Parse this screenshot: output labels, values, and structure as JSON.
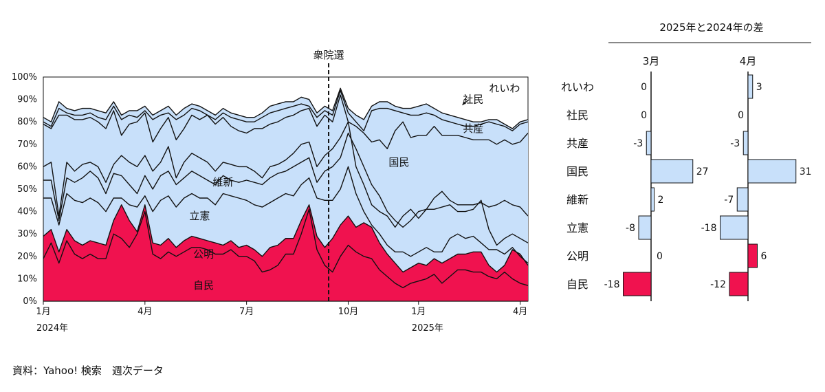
{
  "chart_data": [
    {
      "type": "area",
      "stacked": true,
      "ylim": [
        0,
        100
      ],
      "yticks": [
        "0%",
        "10%",
        "20%",
        "30%",
        "40%",
        "50%",
        "60%",
        "70%",
        "80%",
        "90%",
        "100%"
      ],
      "grid": false,
      "x_axis": {
        "unit": "week",
        "start": "2024-01-01",
        "weeks": 62,
        "ticks": [
          {
            "label": "1月",
            "week": 0
          },
          {
            "label": "4月",
            "week": 13
          },
          {
            "label": "7月",
            "week": 26
          },
          {
            "label": "10月",
            "week": 39
          },
          {
            "label": "1月",
            "week": 48
          },
          {
            "label": "4月",
            "week": 61
          }
        ],
        "year_labels": [
          {
            "label": "2024年",
            "week": 0
          },
          {
            "label": "2025年",
            "week": 48
          }
        ]
      },
      "event": {
        "label": "衆院選",
        "week": 36.5
      },
      "series_order_bottom_to_top": [
        "自民",
        "公明",
        "立憲",
        "維新",
        "国民",
        "共産",
        "社民",
        "れいわ"
      ],
      "cumulative_boundaries": {
        "自民": [
          19,
          26,
          17,
          27,
          21,
          19,
          21,
          19,
          19,
          30,
          28,
          24,
          30,
          40,
          21,
          19,
          22,
          20,
          22,
          24,
          24,
          23,
          21,
          21,
          23,
          20,
          20,
          18,
          13,
          14,
          16,
          21,
          21,
          30,
          41,
          23,
          16,
          13,
          20,
          25,
          22,
          20,
          19,
          14,
          11,
          8,
          6,
          8,
          9,
          10,
          12,
          8,
          11,
          14,
          14,
          13,
          13,
          11,
          10,
          13,
          10,
          8,
          7
        ],
        "公明": [
          29,
          32,
          22,
          32,
          27,
          25,
          27,
          26,
          25,
          36,
          43,
          36,
          31,
          43,
          26,
          25,
          28,
          24,
          27,
          29,
          28,
          27,
          26,
          25,
          27,
          24,
          25,
          23,
          20,
          24,
          25,
          28,
          28,
          36,
          43,
          29,
          24,
          28,
          34,
          38,
          33,
          35,
          33,
          26,
          21,
          17,
          13,
          15,
          17,
          16,
          19,
          17,
          19,
          21,
          21,
          22,
          22,
          16,
          13,
          16,
          23,
          21,
          16
        ],
        "立憲": [
          46,
          46,
          34,
          48,
          45,
          44,
          46,
          44,
          40,
          46,
          46,
          43,
          42,
          47,
          40,
          45,
          47,
          42,
          46,
          48,
          46,
          46,
          43,
          48,
          47,
          46,
          45,
          43,
          42,
          44,
          46,
          48,
          47,
          52,
          55,
          46,
          45,
          45,
          50,
          60,
          48,
          40,
          34,
          30,
          25,
          22,
          22,
          20,
          22,
          24,
          22,
          22,
          28,
          30,
          28,
          29,
          26,
          23,
          23,
          21,
          24,
          20,
          17
        ],
        "維新": [
          54,
          54,
          36,
          55,
          53,
          55,
          58,
          55,
          48,
          57,
          56,
          52,
          48,
          56,
          50,
          56,
          58,
          52,
          55,
          58,
          56,
          54,
          52,
          56,
          54,
          53,
          54,
          53,
          52,
          55,
          57,
          58,
          60,
          62,
          64,
          53,
          58,
          60,
          64,
          75,
          68,
          60,
          52,
          47,
          40,
          36,
          33,
          36,
          40,
          41,
          41,
          42,
          43,
          40,
          40,
          41,
          45,
          32,
          25,
          28,
          30,
          28,
          26
        ],
        "国民": [
          60,
          62,
          38,
          62,
          58,
          61,
          62,
          60,
          53,
          61,
          65,
          62,
          60,
          65,
          58,
          62,
          69,
          55,
          62,
          66,
          64,
          62,
          58,
          62,
          61,
          60,
          60,
          58,
          55,
          60,
          61,
          63,
          66,
          70,
          71,
          60,
          65,
          68,
          73,
          80,
          60,
          52,
          43,
          40,
          38,
          33,
          38,
          41,
          37,
          41,
          46,
          49,
          45,
          43,
          43,
          43,
          44,
          42,
          43,
          45,
          43,
          42,
          38
        ],
        "共産": [
          79,
          77,
          83,
          83,
          81,
          81,
          82,
          80,
          77,
          85,
          74,
          79,
          80,
          84,
          71,
          77,
          82,
          72,
          77,
          83,
          81,
          83,
          79,
          82,
          78,
          76,
          75,
          77,
          77,
          79,
          80,
          82,
          83,
          85,
          86,
          78,
          83,
          80,
          92,
          80,
          78,
          75,
          71,
          72,
          68,
          76,
          80,
          73,
          74,
          74,
          78,
          74,
          74,
          74,
          73,
          72,
          72,
          72,
          70,
          72,
          70,
          71,
          75
        ],
        "社民": [
          80,
          78,
          86,
          84,
          83,
          83,
          84,
          82,
          81,
          87,
          81,
          83,
          82,
          85,
          81,
          83,
          84,
          81,
          83,
          86,
          85,
          83,
          81,
          84,
          82,
          81,
          80,
          80,
          82,
          84,
          85,
          86,
          87,
          88,
          87,
          82,
          85,
          83,
          94,
          84,
          80,
          76,
          85,
          86,
          86,
          85,
          84,
          83,
          83,
          84,
          83,
          81,
          80,
          79,
          78,
          78,
          79,
          80,
          79,
          78,
          76,
          79,
          80
        ],
        "れいわ": [
          82,
          80,
          89,
          86,
          85,
          86,
          86,
          85,
          84,
          89,
          83,
          85,
          85,
          87,
          83,
          85,
          87,
          83,
          86,
          88,
          87,
          85,
          83,
          86,
          84,
          83,
          82,
          82,
          84,
          87,
          88,
          89,
          89,
          91,
          90,
          84,
          87,
          85,
          95,
          86,
          83,
          81,
          87,
          89,
          89,
          87,
          86,
          86,
          87,
          88,
          86,
          84,
          83,
          82,
          81,
          80,
          80,
          81,
          81,
          79,
          77,
          80,
          81
        ]
      },
      "area_labels": [
        {
          "text": "れいわ",
          "week": 59,
          "y": 95
        },
        {
          "text": "社民",
          "week": 55,
          "y": 90
        },
        {
          "text": "共産",
          "week": 55,
          "y": 77
        },
        {
          "text": "国民",
          "week": 45.5,
          "y": 62
        },
        {
          "text": "維新",
          "week": 23,
          "y": 53
        },
        {
          "text": "立憲",
          "week": 20,
          "y": 38
        },
        {
          "text": "公明",
          "week": 20.5,
          "y": 21
        },
        {
          "text": "自民",
          "week": 20.5,
          "y": 7
        }
      ],
      "colors": {
        "自民": "#f0124f",
        "公明": "#f0124f",
        "others": "#c8e0fa",
        "line": "#111111"
      }
    },
    {
      "type": "bar",
      "orientation": "horizontal",
      "title": "2025年と2024年の差",
      "categories": [
        "れいわ",
        "社民",
        "共産",
        "国民",
        "維新",
        "立憲",
        "公明",
        "自民"
      ],
      "series": [
        {
          "name": "3月",
          "values": [
            0,
            0,
            -3,
            27,
            2,
            -8,
            0,
            -18
          ]
        },
        {
          "name": "4月",
          "values": [
            3,
            0,
            -3,
            31,
            -7,
            -18,
            6,
            -12
          ]
        }
      ],
      "highlight_categories": [
        "公明",
        "自民"
      ],
      "colors": {
        "highlight": "#f0124f",
        "default": "#c8e0fa",
        "stroke": "#111111"
      }
    }
  ],
  "source": "資料：Yahoo! 検索　週次データ"
}
